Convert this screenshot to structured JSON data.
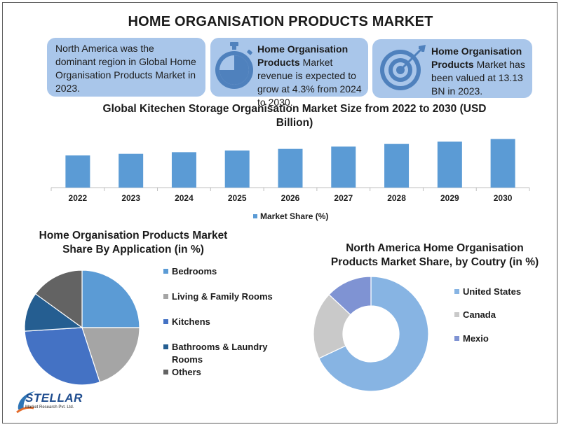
{
  "title": "HOME ORGANISATION PRODUCTS MARKET",
  "info_boxes": [
    {
      "text": "North America was the dominant region in Global Home Organisation Products Market in 2023."
    },
    {
      "bold": "Home Organisation Products",
      "text": " Market revenue is expected to grow at 4.3% from 2024 to 2030.",
      "icon": "stopwatch-icon"
    },
    {
      "bold": "Home Organisation Products",
      "text": " Market has been valued at 13.13 BN in 2023.",
      "icon": "target-icon"
    }
  ],
  "colors": {
    "box_bg": "#a9c6ea",
    "bar": "#5b9bd5",
    "icon": "#4f81bd"
  },
  "logo": {
    "name": "STELLAR",
    "sub": "Market Research Pvt. Ltd."
  },
  "chart_data": [
    {
      "type": "bar",
      "title": "Global Kitechen Storage Organisation Market Size from 2022 to 2030 (USD Billion)",
      "categories": [
        "2022",
        "2023",
        "2024",
        "2025",
        "2026",
        "2027",
        "2028",
        "2029",
        "2030"
      ],
      "series": [
        {
          "name": "Market Share (%)",
          "values": [
            9.8,
            10.3,
            10.8,
            11.3,
            11.8,
            12.5,
            13.3,
            14.0,
            14.8
          ],
          "color": "#5b9bd5"
        }
      ],
      "ylim": [
        0,
        16
      ],
      "legend": "bottom",
      "grid": false
    },
    {
      "type": "pie",
      "title": "Home Organisation Products Market Share By Application (in %)",
      "labels": [
        "Bedrooms",
        "Living & Family Rooms",
        "Kitchens",
        "Bathrooms & Laundry Rooms",
        "Others"
      ],
      "values": [
        25,
        20,
        29,
        11,
        15
      ],
      "colors": [
        "#5b9bd5",
        "#a5a5a5",
        "#4472c4",
        "#255e91",
        "#636363"
      ],
      "legend": "right"
    },
    {
      "type": "pie",
      "subtype": "donut",
      "title": "North America Home Organisation Products Market Share, by Coutry (in %)",
      "labels": [
        "United States",
        "Canada",
        "Mexio"
      ],
      "values": [
        68,
        19,
        13
      ],
      "colors": [
        "#87b4e3",
        "#c9c9c9",
        "#7f93d3"
      ],
      "legend": "right"
    }
  ]
}
